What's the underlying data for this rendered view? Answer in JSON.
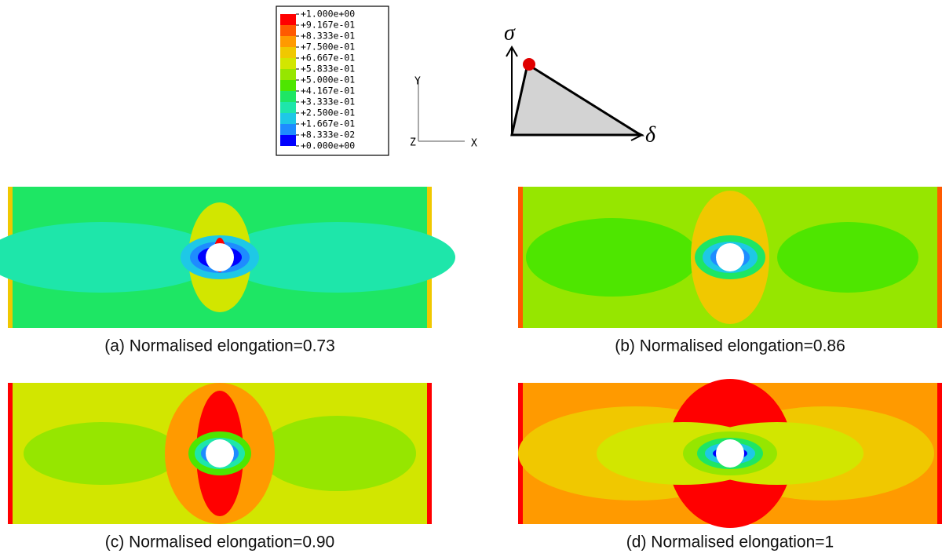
{
  "legend": {
    "labels": [
      "+1.000e+00",
      "+9.167e-01",
      "+8.333e-01",
      "+7.500e-01",
      "+6.667e-01",
      "+5.833e-01",
      "+5.000e-01",
      "+4.167e-01",
      "+3.333e-01",
      "+2.500e-01",
      "+1.667e-01",
      "+8.333e-02",
      "+0.000e+00"
    ],
    "colors": [
      "#ff0000",
      "#ff5a00",
      "#ff9a00",
      "#f0c800",
      "#d2e600",
      "#96e600",
      "#4ee600",
      "#1ee664",
      "#1ee6aa",
      "#1ec8e6",
      "#1e8cff",
      "#0000ff"
    ]
  },
  "axes": {
    "y": "Y",
    "z": "Z",
    "x": "X"
  },
  "diagram": {
    "sigma": "σ",
    "delta": "δ"
  },
  "panels": [
    {
      "caption": "(a) Normalised elongation=0.73"
    },
    {
      "caption": "(b) Normalised elongation=0.86"
    },
    {
      "caption": "(c) Normalised elongation=0.90"
    },
    {
      "caption": "(d) Normalised elongation=1"
    }
  ]
}
